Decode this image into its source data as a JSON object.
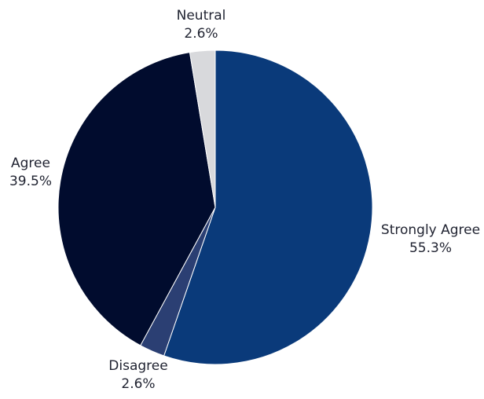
{
  "chart_data": {
    "type": "pie",
    "title": "",
    "slices": [
      {
        "label": "Strongly Agree",
        "value": 55.3,
        "display": "55.3%",
        "color": "#0a3a7a"
      },
      {
        "label": "Disagree",
        "value": 2.6,
        "display": "2.6%",
        "color": "#2b3f73"
      },
      {
        "label": "Agree",
        "value": 39.5,
        "display": "39.5%",
        "color": "#010c2e"
      },
      {
        "label": "Neutral",
        "value": 2.6,
        "display": "2.6%",
        "color": "#d8d9dc"
      }
    ],
    "start_angle": "12 o'clock",
    "direction": "clockwise",
    "legend": "none",
    "labels": "outside slices, category name above percentage"
  }
}
